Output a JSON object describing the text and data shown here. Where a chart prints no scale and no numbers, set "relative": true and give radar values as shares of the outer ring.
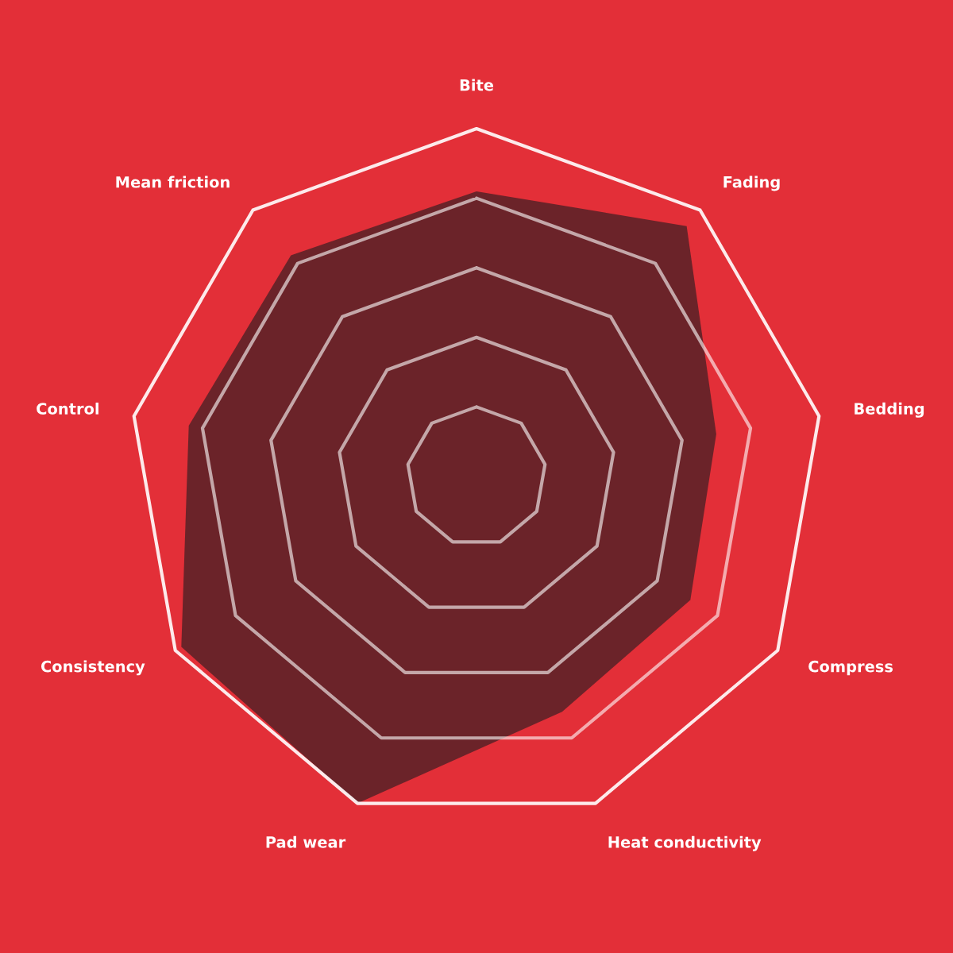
{
  "chart_data": {
    "type": "radar",
    "relative": true,
    "grid": true,
    "categories": [
      "Bite",
      "Fading",
      "Bedding",
      "Compress",
      "Heat conductivity",
      "Pad wear",
      "Consistency",
      "Control",
      "Mean friction"
    ],
    "series": [
      {
        "color": "#6b2329",
        "values": [
          0.82,
          0.94,
          0.7,
          0.71,
          0.72,
          1.0,
          0.98,
          0.84,
          0.83
        ]
      }
    ]
  }
}
